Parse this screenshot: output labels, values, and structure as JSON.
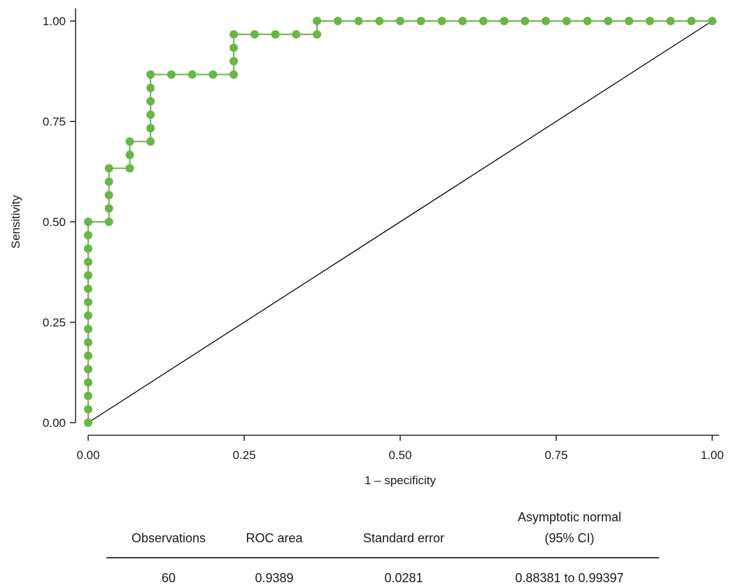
{
  "chart_data": {
    "type": "line",
    "xlabel": "1 – specificity",
    "ylabel": "Sensitivity",
    "xlim": [
      0,
      1
    ],
    "ylim": [
      0,
      1
    ],
    "xticks": [
      "0.00",
      "0.25",
      "0.50",
      "0.75",
      "1.00"
    ],
    "yticks": [
      "0.00",
      "0.25",
      "0.50",
      "0.75",
      "1.00"
    ],
    "grid": false,
    "colors": {
      "roc": "#6ab547",
      "reference": "#000000"
    },
    "reference_line": {
      "x": [
        0,
        1
      ],
      "y": [
        0,
        1
      ]
    },
    "series": [
      {
        "points": [
          [
            0,
            0
          ],
          [
            0,
            0.0333
          ],
          [
            0,
            0.0667
          ],
          [
            0,
            0.1
          ],
          [
            0,
            0.1333
          ],
          [
            0,
            0.1667
          ],
          [
            0,
            0.2
          ],
          [
            0,
            0.2333
          ],
          [
            0,
            0.2667
          ],
          [
            0,
            0.3
          ],
          [
            0,
            0.3333
          ],
          [
            0,
            0.3667
          ],
          [
            0,
            0.4
          ],
          [
            0,
            0.4333
          ],
          [
            0,
            0.4667
          ],
          [
            0,
            0.5
          ],
          [
            0.0333,
            0.5
          ],
          [
            0.0333,
            0.5333
          ],
          [
            0.0333,
            0.5667
          ],
          [
            0.0333,
            0.6
          ],
          [
            0.0333,
            0.6333
          ],
          [
            0.0667,
            0.6333
          ],
          [
            0.0667,
            0.6667
          ],
          [
            0.0667,
            0.7
          ],
          [
            0.1,
            0.7
          ],
          [
            0.1,
            0.7333
          ],
          [
            0.1,
            0.7667
          ],
          [
            0.1,
            0.8
          ],
          [
            0.1,
            0.8333
          ],
          [
            0.1,
            0.8667
          ],
          [
            0.1333,
            0.8667
          ],
          [
            0.1667,
            0.8667
          ],
          [
            0.2,
            0.8667
          ],
          [
            0.2333,
            0.8667
          ],
          [
            0.2333,
            0.9
          ],
          [
            0.2333,
            0.9333
          ],
          [
            0.2333,
            0.9667
          ],
          [
            0.2667,
            0.9667
          ],
          [
            0.3,
            0.9667
          ],
          [
            0.3333,
            0.9667
          ],
          [
            0.3667,
            0.9667
          ],
          [
            0.3667,
            1.0
          ],
          [
            0.4,
            1.0
          ],
          [
            0.4333,
            1.0
          ],
          [
            0.4667,
            1.0
          ],
          [
            0.5,
            1.0
          ],
          [
            0.5333,
            1.0
          ],
          [
            0.5667,
            1.0
          ],
          [
            0.6,
            1.0
          ],
          [
            0.6333,
            1.0
          ],
          [
            0.6667,
            1.0
          ],
          [
            0.7,
            1.0
          ],
          [
            0.7333,
            1.0
          ],
          [
            0.7667,
            1.0
          ],
          [
            0.8,
            1.0
          ],
          [
            0.8333,
            1.0
          ],
          [
            0.8667,
            1.0
          ],
          [
            0.9,
            1.0
          ],
          [
            0.9333,
            1.0
          ],
          [
            0.9667,
            1.0
          ],
          [
            1.0,
            1.0
          ]
        ]
      }
    ]
  },
  "stats_table": {
    "headers": [
      [
        "Observations"
      ],
      [
        "ROC area"
      ],
      [
        "Standard error"
      ],
      [
        "Asymptotic normal",
        "(95% CI)"
      ]
    ],
    "row": [
      "60",
      "0.9389",
      "0.0281",
      "0.88381 to 0.99397"
    ]
  }
}
